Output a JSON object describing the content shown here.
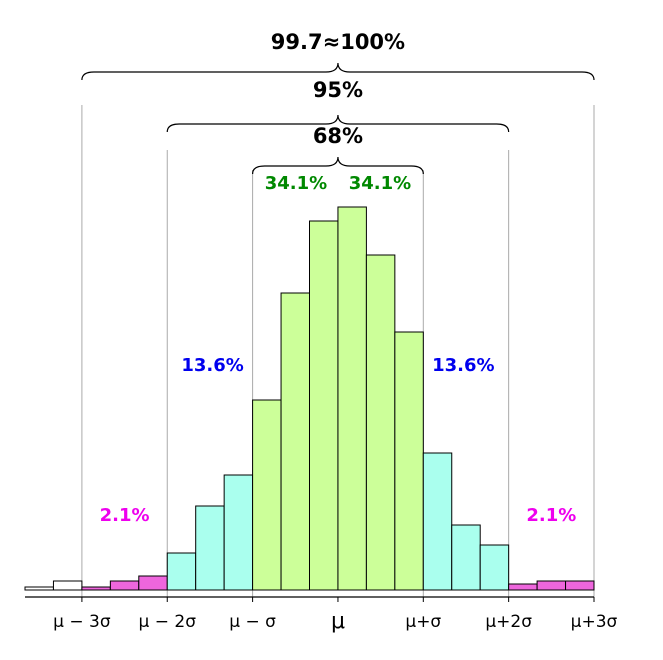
{
  "chart_data": {
    "type": "histogram",
    "bins": [
      -11,
      -10,
      -9,
      -8,
      -7,
      -6,
      -5,
      -4,
      -3,
      -2,
      -1,
      0,
      1,
      2,
      3,
      4,
      5,
      6,
      7,
      8,
      9
    ],
    "values": [
      3,
      9,
      3,
      9,
      14,
      37,
      84,
      115,
      190,
      297,
      369,
      383,
      335,
      258,
      137,
      65,
      45,
      6,
      9,
      9
    ],
    "colors": [
      "#ffffff",
      "#ffffff",
      "#ee66dd",
      "#ee66dd",
      "#ee66dd",
      "#aaffee",
      "#aaffee",
      "#aaffee",
      "#ccff99",
      "#ccff99",
      "#ccff99",
      "#ccff99",
      "#ccff99",
      "#ccff99",
      "#aaffee",
      "#aaffee",
      "#aaffee",
      "#ee66dd",
      "#ee66dd",
      "#ee66dd"
    ],
    "xlim": [
      -11,
      9
    ],
    "ylim": [
      0,
      400
    ],
    "xticks": [
      {
        "value": -9,
        "label": "μ − 3σ"
      },
      {
        "value": -6,
        "label": "μ − 2σ"
      },
      {
        "value": -3,
        "label": "μ − σ"
      },
      {
        "value": 0,
        "label": "μ"
      },
      {
        "value": 3,
        "label": "μ+σ"
      },
      {
        "value": 6,
        "label": "μ+2σ"
      },
      {
        "value": 9,
        "label": "μ+3σ"
      }
    ],
    "braces": [
      {
        "label": "99.7≈100%",
        "span": [
          -9,
          9
        ]
      },
      {
        "label": "95%",
        "span": [
          -6,
          6
        ]
      },
      {
        "label": "68%",
        "span": [
          -3,
          3
        ]
      }
    ],
    "regions": [
      {
        "label": "34.1%",
        "color": "#008800",
        "range": [
          -3,
          0
        ]
      },
      {
        "label": "34.1%",
        "color": "#008800",
        "range": [
          0,
          3
        ]
      },
      {
        "label": "13.6%",
        "color": "#0000ee",
        "range": [
          -6,
          -3
        ]
      },
      {
        "label": "13.6%",
        "color": "#0000ee",
        "range": [
          3,
          6
        ]
      },
      {
        "label": "2.1%",
        "color": "#ee00ee",
        "range": [
          -9,
          -6
        ]
      },
      {
        "label": "2.1%",
        "color": "#ee00ee",
        "range": [
          6,
          9
        ]
      }
    ]
  }
}
